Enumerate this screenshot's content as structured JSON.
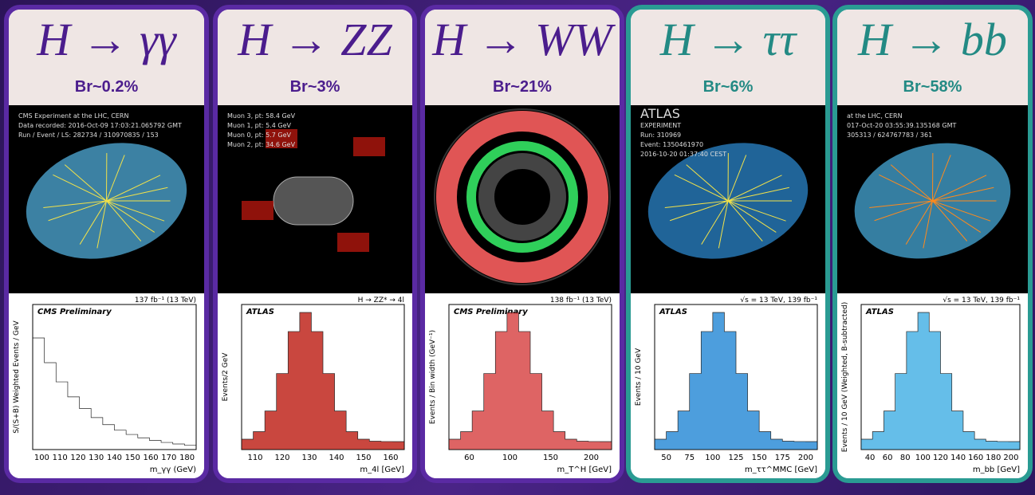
{
  "cards": [
    {
      "title": "H → γγ",
      "branching": "Br~0.2%",
      "event_text": [
        "CMS Experiment at the LHC, CERN",
        "Data recorded: 2016-Oct-09 17:03:21.065792 GMT",
        "Run / Event / LS: 282734 / 310970835 / 153"
      ],
      "plot_header": "CMS Preliminary",
      "plot_lumi": "137 fb⁻¹ (13 TeV)",
      "y_label": "S/(S+B) Weighted Events / GeV",
      "x_label": "m_γγ (GeV)",
      "x_ticks": [
        "100",
        "110",
        "120",
        "130",
        "140",
        "150",
        "160",
        "170",
        "180"
      ]
    },
    {
      "title": "H → ZZ",
      "branching": "Br~3%",
      "event_text": [
        "Muon 3, pt: 58.4 GeV",
        "Muon 1, pt: 5.4 GeV",
        "Muon 0, pt: 5.7 GeV",
        "Muon 2, pt: 34.6 GeV"
      ],
      "plot_header": "ATLAS",
      "plot_lumi": "H → ZZ* → 4l",
      "y_label": "Events/2 GeV",
      "x_label": "m_4l [GeV]",
      "x_ticks": [
        "110",
        "120",
        "130",
        "140",
        "150",
        "160"
      ]
    },
    {
      "title": "H → WW",
      "branching": "Br~21%",
      "event_text": [],
      "plot_header": "CMS Preliminary",
      "plot_lumi": "138 fb⁻¹ (13 TeV)",
      "y_label": "Events / Bin width (GeV⁻¹)",
      "x_label": "m_T^H [GeV]",
      "x_ticks": [
        "60",
        "100",
        "150",
        "200"
      ]
    },
    {
      "title": "H → ττ",
      "branching": "Br~6%",
      "event_text": [
        "ATLAS",
        "EXPERIMENT",
        "Run: 310969",
        "Event: 1350461970",
        "2016-10-20 01:37:40 CEST"
      ],
      "plot_header": "ATLAS",
      "plot_lumi": "√s = 13 TeV, 139 fb⁻¹",
      "y_label": "Events / 10 GeV",
      "x_label": "m_ττ^MMC [GeV]",
      "x_ticks": [
        "50",
        "75",
        "100",
        "125",
        "150",
        "175",
        "200"
      ]
    },
    {
      "title": "H → bb",
      "branching": "Br~58%",
      "event_text": [
        "at the LHC, CERN",
        "017-Oct-20 03:55:39.135168 GMT",
        "305313 / 624767783 / 361"
      ],
      "plot_header": "ATLAS",
      "plot_lumi": "√s = 13 TeV, 139 fb⁻¹",
      "y_label": "Events / 10 GeV (Weighted, B-subtracted)",
      "x_label": "m_bb [GeV]",
      "x_ticks": [
        "40",
        "60",
        "80",
        "100",
        "120",
        "140",
        "160",
        "180",
        "200"
      ]
    }
  ]
}
